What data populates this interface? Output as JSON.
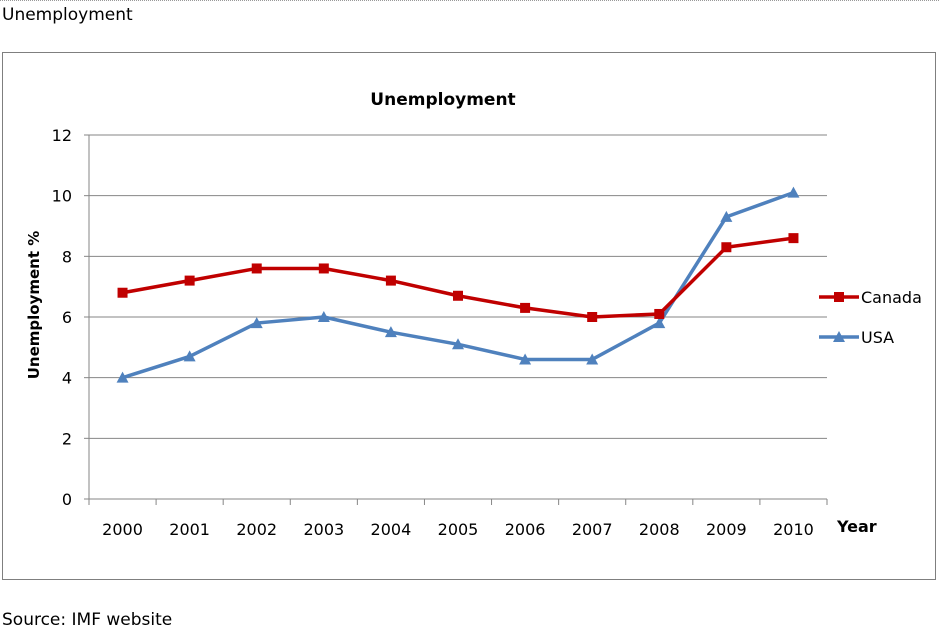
{
  "page": {
    "heading": "Unemployment",
    "source": "Source: IMF website"
  },
  "chart_data": {
    "type": "line",
    "title": "Unemployment",
    "xlabel": "Year",
    "ylabel": "Unemployment %",
    "categories": [
      "2000",
      "2001",
      "2002",
      "2003",
      "2004",
      "2005",
      "2006",
      "2007",
      "2008",
      "2009",
      "2010"
    ],
    "ylim": [
      0,
      12
    ],
    "yticks": [
      0,
      2,
      4,
      6,
      8,
      10,
      12
    ],
    "grid": true,
    "legend_position": "right",
    "series": [
      {
        "name": "Canada",
        "color": "#c00000",
        "marker": "square",
        "values": [
          6.8,
          7.2,
          7.6,
          7.6,
          7.2,
          6.7,
          6.3,
          6.0,
          6.1,
          8.3,
          8.6
        ]
      },
      {
        "name": "USA",
        "color": "#4f81bd",
        "marker": "triangle",
        "values": [
          4.0,
          4.7,
          5.8,
          6.0,
          5.5,
          5.1,
          4.6,
          4.6,
          5.8,
          9.3,
          10.1
        ]
      }
    ]
  }
}
